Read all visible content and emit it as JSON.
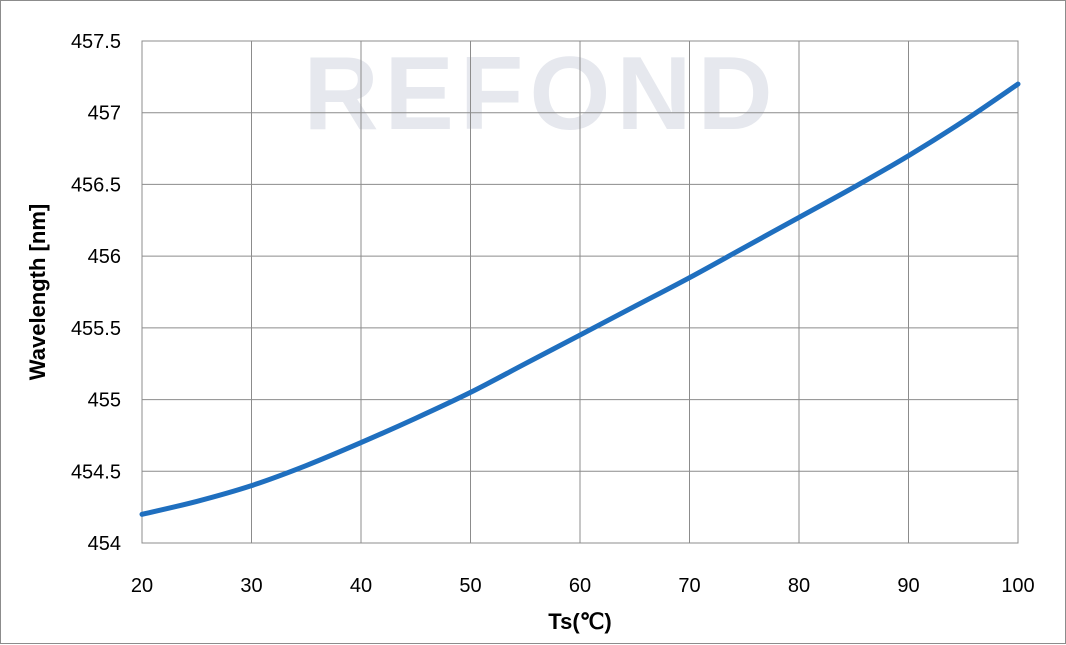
{
  "watermark": "REFOND",
  "chart_data": {
    "type": "line",
    "title": "",
    "xlabel": "Ts(℃)",
    "ylabel": "Wavelength  [nm]",
    "xlim": [
      20,
      100
    ],
    "ylim": [
      454,
      457.5
    ],
    "x_ticks": [
      20,
      30,
      40,
      50,
      60,
      70,
      80,
      90,
      100
    ],
    "y_ticks": [
      454,
      454.5,
      455,
      455.5,
      456,
      456.5,
      457,
      457.5
    ],
    "y_tick_labels": [
      "454",
      "454.5",
      "455",
      "455.5",
      "456",
      "456.5",
      "457",
      "457.5"
    ],
    "grid": true,
    "legend": "none",
    "series": [
      {
        "color": "#1f6fbf",
        "x": [
          20,
          25,
          30,
          35,
          40,
          45,
          50,
          55,
          60,
          65,
          70,
          75,
          80,
          85,
          90,
          95,
          100
        ],
        "y": [
          454.2,
          454.29,
          454.4,
          454.54,
          454.7,
          454.87,
          455.05,
          455.25,
          455.45,
          455.65,
          455.85,
          456.06,
          456.27,
          456.48,
          456.7,
          456.94,
          457.2
        ]
      }
    ]
  }
}
